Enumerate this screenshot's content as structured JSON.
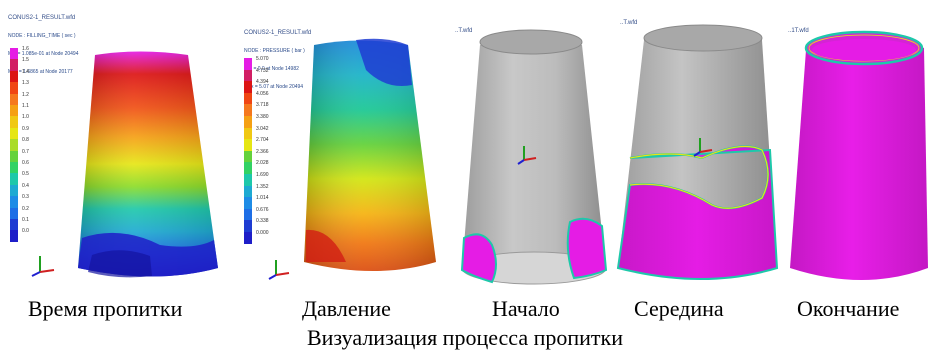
{
  "panels": [
    {
      "id": "fill-time",
      "header": {
        "filename": "CONUS2-1_RESULT.wfd",
        "line1": "NODE : FILLING_TIME ( sec )",
        "line2": "Min = 1.085e-01 at Node 20494",
        "line3": "Max = 1.6865 at Node 20177"
      },
      "legend": [
        "1.6",
        "1.5",
        "1.4",
        "1.3",
        "1.2",
        "1.1",
        "1.0",
        "0.9",
        "0.8",
        "0.7",
        "0.6",
        "0.5",
        "0.4",
        "0.3",
        "0.2",
        "0.1",
        "0.0"
      ],
      "caption": "Время  пропитки"
    },
    {
      "id": "pressure",
      "header": {
        "filename": "CONUS2-1_RESULT.wfd",
        "line1": "NODE : PRESSURE ( bar )",
        "line2": "Min = 0.0 at Node 14982",
        "line3": "Max = 5.07 at Node 20494"
      },
      "legend": [
        "5.070",
        "4.732",
        "4.394",
        "4.056",
        "3.718",
        "3.380",
        "3.042",
        "2.704",
        "2.366",
        "2.028",
        "1.690",
        "1.352",
        "1.014",
        "0.676",
        "0.338",
        "0.000"
      ],
      "caption": "Давление"
    },
    {
      "id": "start",
      "header": {
        "filename": "..T.wfd"
      },
      "caption": "Начало"
    },
    {
      "id": "middle",
      "header": {
        "filename": "..T.wfd"
      },
      "caption": "Середина"
    },
    {
      "id": "end",
      "header": {
        "filename": "..1T.wfd"
      },
      "caption": "Окончание"
    }
  ],
  "title": "Визуализация процесса пропитки",
  "colors": {
    "magenta": "#e51ce5",
    "gray_shell": "#b8b8b8",
    "contour_seq": [
      "#1e1ec8",
      "#1e6ee6",
      "#1eaad2",
      "#1ec8aa",
      "#32d23c",
      "#aadc28",
      "#f0e614",
      "#f5a014",
      "#f04614",
      "#dc1414"
    ]
  }
}
